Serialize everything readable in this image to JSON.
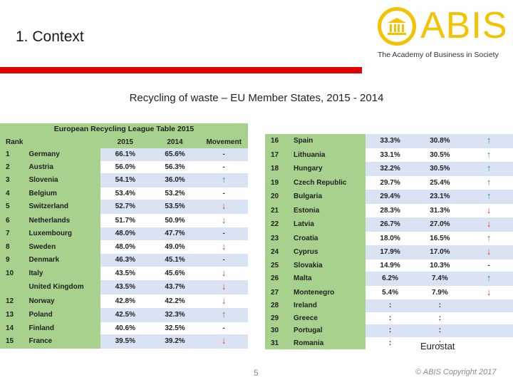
{
  "slide": {
    "title": "1. Context",
    "subtitle": "Recycling of waste – EU Member States, 2015 - 2014",
    "source": "Eurostat",
    "page_number": "5",
    "copyright": "© ABIS Copyright 2017"
  },
  "logo": {
    "name": "ABIS",
    "tagline": "The Academy of Business in Society",
    "color": "#f2c300"
  },
  "colors": {
    "accent_red": "#e00000",
    "green": "#a9d18e",
    "blue_row": "#dae3f3",
    "up": "#2e9b4c",
    "down": "#e23a2a"
  },
  "table": {
    "title": "European Recycling League Table 2015",
    "headers": {
      "rank": "Rank",
      "y2015": "2015",
      "y2014": "2014",
      "movement": "Movement"
    },
    "left_rows": [
      {
        "rank": "1",
        "country": "Germany",
        "y2015": "66.1%",
        "y2014": "65.6%",
        "movement": "-"
      },
      {
        "rank": "2",
        "country": "Austria",
        "y2015": "56.0%",
        "y2014": "56.3%",
        "movement": "-"
      },
      {
        "rank": "3",
        "country": "Slovenia",
        "y2015": "54.1%",
        "y2014": "36.0%",
        "movement": "up"
      },
      {
        "rank": "4",
        "country": "Belgium",
        "y2015": "53.4%",
        "y2014": "53.2%",
        "movement": "-"
      },
      {
        "rank": "5",
        "country": "Switzerland",
        "y2015": "52.7%",
        "y2014": "53.5%",
        "movement": "down"
      },
      {
        "rank": "6",
        "country": "Netherlands",
        "y2015": "51.7%",
        "y2014": "50.9%",
        "movement": "down"
      },
      {
        "rank": "7",
        "country": "Luxembourg",
        "y2015": "48.0%",
        "y2014": "47.7%",
        "movement": "-"
      },
      {
        "rank": "8",
        "country": "Sweden",
        "y2015": "48.0%",
        "y2014": "49.0%",
        "movement": "down"
      },
      {
        "rank": "9",
        "country": "Denmark",
        "y2015": "46.3%",
        "y2014": "45.1%",
        "movement": "-"
      },
      {
        "rank": "10",
        "country": "Italy",
        "y2015": "43.5%",
        "y2014": "45.6%",
        "movement": "down"
      },
      {
        "rank": "",
        "country": "United Kingdom",
        "y2015": "43.5%",
        "y2014": "43.7%",
        "movement": "down"
      },
      {
        "rank": "12",
        "country": "Norway",
        "y2015": "42.8%",
        "y2014": "42.2%",
        "movement": "down"
      },
      {
        "rank": "13",
        "country": "Poland",
        "y2015": "42.5%",
        "y2014": "32.3%",
        "movement": "up"
      },
      {
        "rank": "14",
        "country": "Finland",
        "y2015": "40.6%",
        "y2014": "32.5%",
        "movement": "-"
      },
      {
        "rank": "15",
        "country": "France",
        "y2015": "39.5%",
        "y2014": "39.2%",
        "movement": "down"
      }
    ],
    "right_rows": [
      {
        "rank": "16",
        "country": "Spain",
        "y2015": "33.3%",
        "y2014": "30.8%",
        "movement": "up"
      },
      {
        "rank": "17",
        "country": "Lithuania",
        "y2015": "33.1%",
        "y2014": "30.5%",
        "movement": "up"
      },
      {
        "rank": "18",
        "country": "Hungary",
        "y2015": "32.2%",
        "y2014": "30.5%",
        "movement": "up"
      },
      {
        "rank": "19",
        "country": "Czech Republic",
        "y2015": "29.7%",
        "y2014": "25.4%",
        "movement": "up"
      },
      {
        "rank": "20",
        "country": "Bulgaria",
        "y2015": "29.4%",
        "y2014": "23.1%",
        "movement": "up"
      },
      {
        "rank": "21",
        "country": "Estonia",
        "y2015": "28.3%",
        "y2014": "31.3%",
        "movement": "down"
      },
      {
        "rank": "22",
        "country": "Latvia",
        "y2015": "26.7%",
        "y2014": "27.0%",
        "movement": "down"
      },
      {
        "rank": "23",
        "country": "Croatia",
        "y2015": "18.0%",
        "y2014": "16.5%",
        "movement": "up"
      },
      {
        "rank": "24",
        "country": "Cyprus",
        "y2015": "17.9%",
        "y2014": "17.0%",
        "movement": "down"
      },
      {
        "rank": "25",
        "country": "Slovakia",
        "y2015": "14.9%",
        "y2014": "10.3%",
        "movement": "-"
      },
      {
        "rank": "26",
        "country": "Malta",
        "y2015": "6.2%",
        "y2014": "7.4%",
        "movement": "up"
      },
      {
        "rank": "27",
        "country": "Montenegro",
        "y2015": "5.4%",
        "y2014": "7.9%",
        "movement": "down"
      },
      {
        "rank": "28",
        "country": "Ireland",
        "y2015": ":",
        "y2014": ":",
        "movement": ""
      },
      {
        "rank": "29",
        "country": "Greece",
        "y2015": ":",
        "y2014": ":",
        "movement": ""
      },
      {
        "rank": "30",
        "country": "Portugal",
        "y2015": ":",
        "y2014": ":",
        "movement": ""
      },
      {
        "rank": "31",
        "country": "Romania",
        "y2015": ":",
        "y2014": ":",
        "movement": ""
      }
    ]
  }
}
